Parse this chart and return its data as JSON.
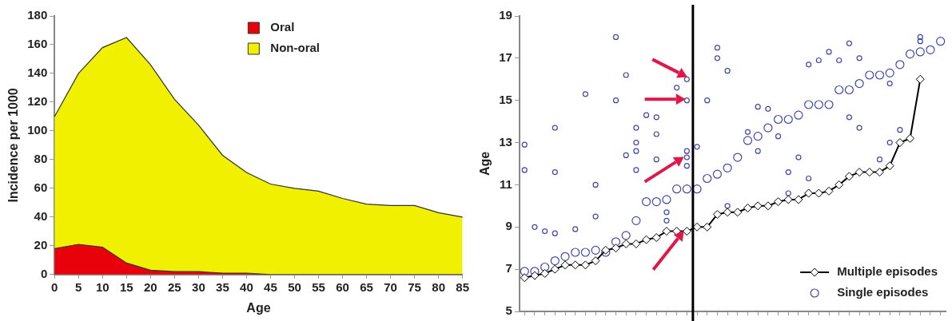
{
  "chart_data": [
    {
      "type": "area",
      "stacked": true,
      "xlabel": "Age",
      "ylabel": "Incidence per 1000",
      "categories": [
        "0",
        "5",
        "10",
        "15",
        "20",
        "25",
        "30",
        "35",
        "40",
        "45",
        "50",
        "55",
        "60",
        "65",
        "70",
        "75",
        "80",
        "85"
      ],
      "series": [
        {
          "name": "Oral",
          "color": "#e8000b",
          "values": [
            18,
            21,
            19,
            8,
            3,
            2,
            2,
            1,
            1,
            0,
            0,
            0,
            0,
            0,
            0,
            0,
            0,
            0
          ]
        },
        {
          "name": "Non-oral",
          "color": "#f0f000",
          "values": [
            92,
            119,
            139,
            157,
            143,
            120,
            102,
            82,
            70,
            63,
            60,
            58,
            53,
            49,
            48,
            48,
            43,
            40
          ]
        }
      ],
      "ylim": [
        0,
        180
      ],
      "yticks": [
        0,
        20,
        40,
        60,
        80,
        100,
        120,
        140,
        160,
        180
      ],
      "grid": false,
      "legend": "top right"
    },
    {
      "type": "scatter",
      "ylabel": "Age",
      "tick_labels": "y",
      "categories": [
        null,
        null,
        null,
        null,
        null,
        null,
        null,
        null,
        null,
        null,
        null,
        null,
        null,
        null,
        null,
        null,
        null,
        null,
        null,
        null,
        null,
        null,
        null,
        null,
        null,
        null,
        null,
        null,
        null,
        null,
        null,
        null,
        null,
        null,
        null,
        null,
        null,
        null,
        null,
        null,
        null,
        null
      ],
      "ylim": [
        5,
        19
      ],
      "yticks": [
        5,
        7,
        9,
        11,
        13,
        15,
        17,
        19
      ],
      "grid": false,
      "legend": "bottom right",
      "series": [
        {
          "name": "Multiple episodes",
          "type": "line",
          "marker": "diamond",
          "color": "#000000",
          "values": [
            6.6,
            6.7,
            6.8,
            7.0,
            7.2,
            7.2,
            7.2,
            7.4,
            7.9,
            8.0,
            8.2,
            8.2,
            8.4,
            8.5,
            8.8,
            8.8,
            8.8,
            9.0,
            9.0,
            9.6,
            9.7,
            9.7,
            9.9,
            10.0,
            10.0,
            10.2,
            10.3,
            10.3,
            10.6,
            10.6,
            10.7,
            11.0,
            11.4,
            11.6,
            11.6,
            11.6,
            11.9,
            13.0,
            13.2,
            16.0,
            null,
            null
          ]
        },
        {
          "name": "Single episodes",
          "marker": "circle",
          "color": "#4048a8",
          "values": [
            6.9,
            6.9,
            7.1,
            7.4,
            7.6,
            7.8,
            7.8,
            7.9,
            7.8,
            8.3,
            8.6,
            9.3,
            10.2,
            10.2,
            10.3,
            10.8,
            10.8,
            10.8,
            11.3,
            11.5,
            11.8,
            12.3,
            13.1,
            13.3,
            13.7,
            14.1,
            14.1,
            14.3,
            14.8,
            14.8,
            14.8,
            15.5,
            15.5,
            15.8,
            16.2,
            16.2,
            16.3,
            16.7,
            17.2,
            17.3,
            17.4,
            17.8
          ]
        },
        {
          "marker": "circle",
          "color": "#4048a8",
          "values": [
            12.9,
            9.0,
            8.8,
            13.7,
            null,
            8.9,
            15.3,
            11.0,
            null,
            18.0,
            12.4,
            13.7,
            14.3,
            14.2,
            9.7,
            15.6,
            16.0,
            12.8,
            15.0,
            17.5,
            16.4,
            null,
            13.5,
            14.7,
            14.6,
            13.3,
            10.6,
            12.3,
            16.7,
            16.9,
            17.3,
            16.9,
            17.7,
            17.0,
            null,
            12.2,
            15.8,
            13.6,
            null,
            18.0,
            null,
            null
          ]
        },
        {
          "marker": "circle",
          "color": "#4048a8",
          "values": [
            11.7,
            null,
            null,
            11.6,
            null,
            null,
            null,
            9.5,
            null,
            15.0,
            16.2,
            13.0,
            null,
            13.4,
            9.3,
            null,
            15.0,
            null,
            null,
            17.0,
            10.0,
            null,
            null,
            12.6,
            null,
            null,
            11.6,
            null,
            11.3,
            null,
            null,
            null,
            14.2,
            13.7,
            null,
            null,
            13.0,
            null,
            null,
            17.8,
            null,
            null
          ]
        },
        {
          "marker": "circle",
          "color": "#4048a8",
          "values": [
            null,
            null,
            null,
            8.7,
            null,
            null,
            null,
            null,
            null,
            null,
            null,
            12.6,
            null,
            12.2,
            null,
            null,
            12.6,
            null,
            null,
            null,
            null,
            null,
            null,
            null,
            null,
            null,
            null,
            null,
            null,
            null,
            null,
            null,
            null,
            null,
            null,
            null,
            null,
            null,
            null,
            null,
            null,
            null
          ]
        },
        {
          "marker": "circle",
          "color": "#4048a8",
          "values": [
            null,
            null,
            null,
            null,
            null,
            null,
            null,
            null,
            null,
            null,
            null,
            11.7,
            null,
            null,
            null,
            null,
            12.3,
            null,
            null,
            null,
            null,
            null,
            null,
            null,
            null,
            null,
            null,
            null,
            null,
            null,
            null,
            null,
            null,
            null,
            null,
            null,
            null,
            null,
            null,
            null,
            null,
            null
          ]
        },
        {
          "marker": "circle",
          "color": "#4048a8",
          "values": [
            null,
            null,
            null,
            null,
            null,
            null,
            null,
            null,
            null,
            null,
            null,
            null,
            null,
            null,
            null,
            null,
            11.9,
            null,
            null,
            null,
            null,
            null,
            null,
            null,
            null,
            null,
            null,
            null,
            null,
            null,
            null,
            null,
            null,
            null,
            null,
            null,
            null,
            null,
            null,
            null,
            null,
            null
          ]
        }
      ]
    }
  ]
}
